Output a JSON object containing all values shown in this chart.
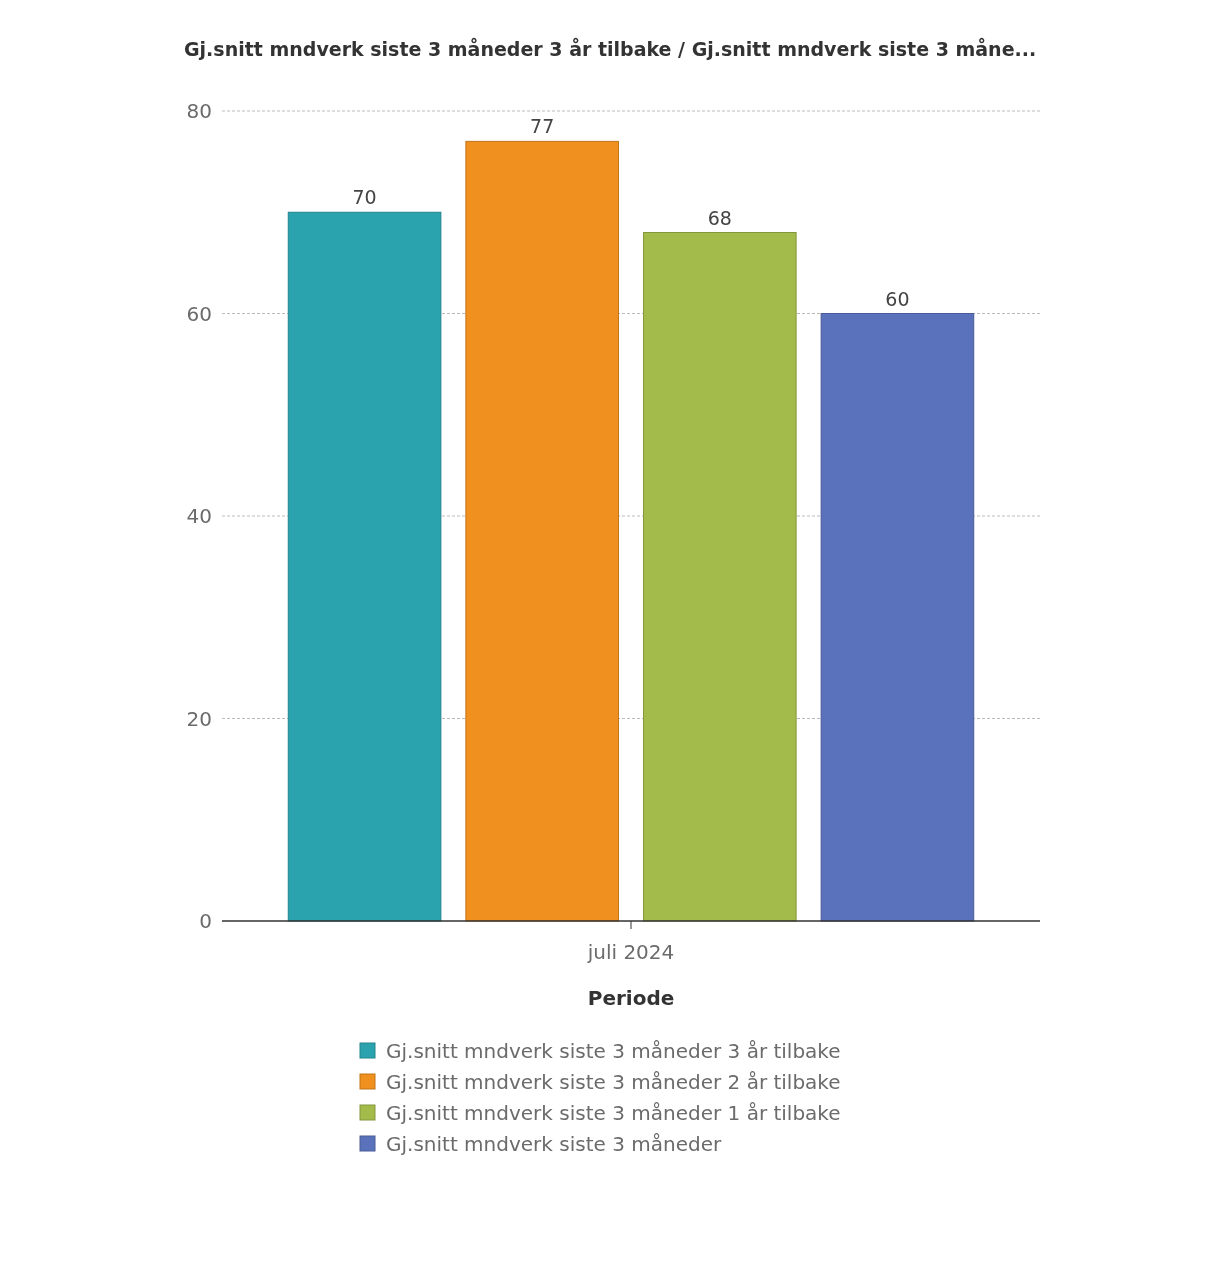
{
  "chart_data": {
    "type": "bar",
    "title": "Gj.snitt mndverk siste 3 måneder 3 år tilbake / Gj.snitt mndverk siste 3 måne...",
    "xlabel": "Periode",
    "categories": [
      "juli 2024"
    ],
    "series": [
      {
        "name": "Gj.snitt mndverk siste 3 måneder 3 år tilbake",
        "color": "#2aa3ae",
        "values": [
          70
        ]
      },
      {
        "name": "Gj.snitt mndverk siste 3 måneder 2 år tilbake",
        "color": "#f0901f",
        "values": [
          77
        ]
      },
      {
        "name": "Gj.snitt mndverk siste 3 måneder 1 år tilbake",
        "color": "#a3bb4a",
        "values": [
          68
        ]
      },
      {
        "name": "Gj.snitt mndverk siste 3 måneder",
        "color": "#5a72bb",
        "values": [
          60
        ]
      }
    ],
    "ylim": [
      0,
      80
    ],
    "yticks": [
      0,
      20,
      40,
      60,
      80
    ],
    "grid": "y",
    "legend": "bottom",
    "data_labels": true
  }
}
